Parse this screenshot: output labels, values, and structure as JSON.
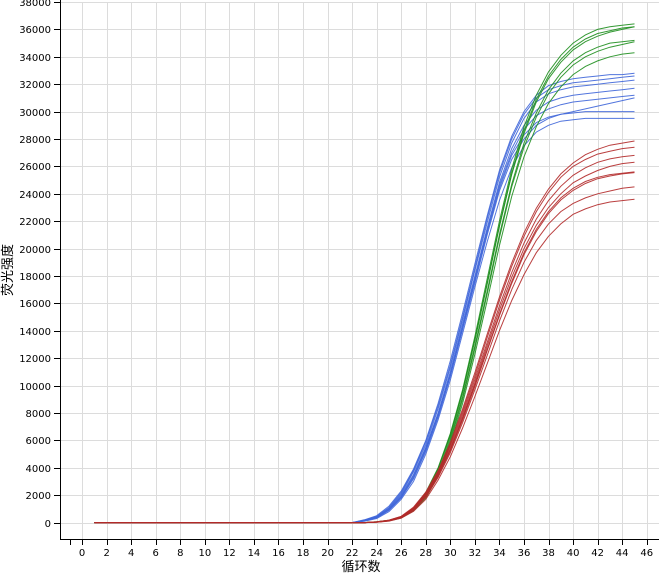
{
  "chart_data": {
    "type": "line",
    "xlabel": "循环数",
    "ylabel": "荧光强度",
    "xlim": [
      -1.8,
      47
    ],
    "ylim": [
      -1200,
      38000
    ],
    "xticks": [
      0,
      2,
      4,
      6,
      8,
      10,
      12,
      14,
      16,
      18,
      20,
      22,
      24,
      26,
      28,
      30,
      32,
      34,
      36,
      38,
      40,
      42,
      44,
      46
    ],
    "yticks": [
      0,
      2000,
      4000,
      6000,
      8000,
      10000,
      12000,
      14000,
      16000,
      18000,
      20000,
      22000,
      24000,
      26000,
      28000,
      30000,
      32000,
      34000,
      36000,
      38000
    ],
    "grid": true,
    "legend": "none",
    "x": [
      1,
      2,
      3,
      4,
      5,
      6,
      7,
      8,
      9,
      10,
      11,
      12,
      13,
      14,
      15,
      16,
      17,
      18,
      19,
      20,
      21,
      22,
      23,
      24,
      25,
      26,
      27,
      28,
      29,
      30,
      31,
      32,
      33,
      34,
      35,
      36,
      37,
      38,
      39,
      40,
      41,
      42,
      43,
      44,
      45
    ],
    "series": [
      {
        "color": "#3f66d9",
        "values": [
          0,
          0,
          0,
          0,
          0,
          0,
          0,
          0,
          0,
          0,
          0,
          0,
          0,
          0,
          0,
          0,
          0,
          0,
          0,
          0,
          0,
          0,
          150,
          400,
          1000,
          2000,
          3500,
          5500,
          8000,
          11000,
          14500,
          18000,
          21500,
          24800,
          27300,
          29000,
          30100,
          30700,
          31000,
          31200,
          31300,
          31400,
          31500,
          31600,
          31700
        ]
      },
      {
        "color": "#3f66d9",
        "values": [
          0,
          0,
          0,
          0,
          0,
          0,
          0,
          0,
          0,
          0,
          0,
          0,
          0,
          0,
          0,
          0,
          0,
          0,
          0,
          0,
          0,
          0,
          120,
          350,
          900,
          1800,
          3200,
          5200,
          7700,
          10700,
          14200,
          17700,
          21200,
          24400,
          26800,
          28300,
          29200,
          29600,
          29800,
          29900,
          30000,
          30000,
          30000,
          30000,
          30000
        ]
      },
      {
        "color": "#3f66d9",
        "values": [
          0,
          0,
          0,
          0,
          0,
          0,
          0,
          0,
          0,
          0,
          0,
          0,
          0,
          0,
          0,
          0,
          0,
          0,
          0,
          0,
          0,
          0,
          180,
          450,
          1100,
          2200,
          3800,
          5900,
          8500,
          11500,
          15000,
          18600,
          22200,
          25500,
          28000,
          29800,
          31000,
          31600,
          31900,
          32100,
          32200,
          32300,
          32400,
          32500,
          32600
        ]
      },
      {
        "color": "#3f66d9",
        "values": [
          0,
          0,
          0,
          0,
          0,
          0,
          0,
          0,
          0,
          0,
          0,
          0,
          0,
          0,
          0,
          0,
          0,
          0,
          0,
          0,
          0,
          0,
          100,
          300,
          800,
          1700,
          3000,
          5000,
          7500,
          10400,
          13800,
          17200,
          20500,
          23500,
          25900,
          27500,
          28500,
          29000,
          29300,
          29400,
          29500,
          29500,
          29500,
          29500,
          29500
        ]
      },
      {
        "color": "#3f66d9",
        "values": [
          0,
          0,
          0,
          0,
          0,
          0,
          0,
          0,
          0,
          0,
          0,
          0,
          0,
          0,
          0,
          0,
          0,
          0,
          0,
          0,
          0,
          0,
          200,
          500,
          1200,
          2300,
          3900,
          6000,
          8700,
          11800,
          15300,
          18900,
          22400,
          25700,
          28200,
          30000,
          31200,
          31900,
          32200,
          32400,
          32500,
          32600,
          32700,
          32700,
          32800
        ]
      },
      {
        "color": "#3f66d9",
        "values": [
          0,
          0,
          0,
          0,
          0,
          0,
          0,
          0,
          0,
          0,
          0,
          0,
          0,
          0,
          0,
          0,
          0,
          0,
          0,
          0,
          0,
          0,
          140,
          380,
          950,
          1900,
          3400,
          5400,
          7900,
          10800,
          14300,
          17800,
          21300,
          24600,
          27000,
          28700,
          29700,
          30200,
          30500,
          30700,
          30800,
          30900,
          31000,
          31100,
          31200
        ]
      },
      {
        "color": "#3f66d9",
        "values": [
          0,
          0,
          0,
          0,
          0,
          0,
          0,
          0,
          0,
          0,
          0,
          0,
          0,
          0,
          0,
          0,
          0,
          0,
          0,
          0,
          0,
          0,
          130,
          360,
          920,
          1850,
          3300,
          5300,
          7800,
          10700,
          14100,
          17500,
          21000,
          24200,
          26500,
          28000,
          29000,
          29500,
          29800,
          30000,
          30200,
          30400,
          30600,
          30800,
          31000
        ]
      },
      {
        "color": "#3f66d9",
        "values": [
          0,
          0,
          0,
          0,
          0,
          0,
          0,
          0,
          0,
          0,
          0,
          0,
          0,
          0,
          0,
          0,
          0,
          0,
          0,
          0,
          0,
          0,
          170,
          430,
          1050,
          2100,
          3700,
          5700,
          8300,
          11300,
          14800,
          18400,
          21900,
          25200,
          27700,
          29500,
          30700,
          31300,
          31600,
          31800,
          31900,
          32000,
          32100,
          32200,
          32300
        ]
      },
      {
        "color": "#1f8f1f",
        "values": [
          0,
          0,
          0,
          0,
          0,
          0,
          0,
          0,
          0,
          0,
          0,
          0,
          0,
          0,
          0,
          0,
          0,
          0,
          0,
          0,
          0,
          0,
          0,
          50,
          150,
          400,
          1000,
          2100,
          3900,
          6300,
          9500,
          13300,
          17400,
          21600,
          25400,
          28400,
          30700,
          32400,
          33600,
          34500,
          35100,
          35500,
          35800,
          36000,
          36200
        ]
      },
      {
        "color": "#1f8f1f",
        "values": [
          0,
          0,
          0,
          0,
          0,
          0,
          0,
          0,
          0,
          0,
          0,
          0,
          0,
          0,
          0,
          0,
          0,
          0,
          0,
          0,
          0,
          0,
          0,
          40,
          130,
          360,
          900,
          1900,
          3600,
          5900,
          9000,
          12700,
          16700,
          20800,
          24500,
          27400,
          29600,
          31300,
          32500,
          33400,
          34000,
          34400,
          34700,
          34900,
          35100
        ]
      },
      {
        "color": "#1f8f1f",
        "values": [
          0,
          0,
          0,
          0,
          0,
          0,
          0,
          0,
          0,
          0,
          0,
          0,
          0,
          0,
          0,
          0,
          0,
          0,
          0,
          0,
          0,
          0,
          0,
          60,
          170,
          430,
          1050,
          2200,
          4000,
          6500,
          9700,
          13600,
          17800,
          22000,
          25800,
          28900,
          31200,
          32900,
          34100,
          35000,
          35600,
          36000,
          36200,
          36300,
          36400
        ]
      },
      {
        "color": "#1f8f1f",
        "values": [
          0,
          0,
          0,
          0,
          0,
          0,
          0,
          0,
          0,
          0,
          0,
          0,
          0,
          0,
          0,
          0,
          0,
          0,
          0,
          0,
          0,
          0,
          0,
          40,
          120,
          330,
          850,
          1800,
          3400,
          5700,
          8700,
          12300,
          16200,
          20200,
          23800,
          26700,
          28900,
          30600,
          31800,
          32700,
          33300,
          33700,
          34000,
          34200,
          34300
        ]
      },
      {
        "color": "#1f8f1f",
        "values": [
          0,
          0,
          0,
          0,
          0,
          0,
          0,
          0,
          0,
          0,
          0,
          0,
          0,
          0,
          0,
          0,
          0,
          0,
          0,
          0,
          0,
          0,
          0,
          55,
          160,
          410,
          1020,
          2150,
          3950,
          6400,
          9600,
          13400,
          17500,
          21700,
          25500,
          28600,
          30900,
          32600,
          33800,
          34700,
          35300,
          35700,
          35900,
          36100,
          36200
        ]
      },
      {
        "color": "#1f8f1f",
        "values": [
          0,
          0,
          0,
          0,
          0,
          0,
          0,
          0,
          0,
          0,
          0,
          0,
          0,
          0,
          0,
          0,
          0,
          0,
          0,
          0,
          0,
          0,
          0,
          45,
          140,
          380,
          950,
          2000,
          3700,
          6100,
          9200,
          12900,
          16900,
          21000,
          24700,
          27700,
          29900,
          31600,
          32800,
          33700,
          34300,
          34700,
          35000,
          35100,
          35200
        ]
      },
      {
        "color": "#b22a2a",
        "values": [
          0,
          0,
          0,
          0,
          0,
          0,
          0,
          0,
          0,
          0,
          0,
          0,
          0,
          0,
          0,
          0,
          0,
          0,
          0,
          0,
          0,
          0,
          0,
          40,
          150,
          400,
          1000,
          2000,
          3500,
          5400,
          7700,
          10200,
          12900,
          15500,
          17900,
          20000,
          21700,
          23000,
          24000,
          24800,
          25300,
          25700,
          26000,
          26200,
          26300
        ]
      },
      {
        "color": "#b22a2a",
        "values": [
          0,
          0,
          0,
          0,
          0,
          0,
          0,
          0,
          0,
          0,
          0,
          0,
          0,
          0,
          0,
          0,
          0,
          0,
          0,
          0,
          0,
          0,
          0,
          30,
          120,
          350,
          900,
          1850,
          3300,
          5100,
          7300,
          9700,
          12200,
          14700,
          17000,
          19000,
          20600,
          21800,
          22700,
          23300,
          23700,
          24000,
          24200,
          24400,
          24500
        ]
      },
      {
        "color": "#b22a2a",
        "values": [
          0,
          0,
          0,
          0,
          0,
          0,
          0,
          0,
          0,
          0,
          0,
          0,
          0,
          0,
          0,
          0,
          0,
          0,
          0,
          0,
          0,
          0,
          0,
          50,
          170,
          440,
          1080,
          2150,
          3700,
          5700,
          8100,
          10700,
          13500,
          16200,
          18700,
          20900,
          22700,
          24100,
          25200,
          26000,
          26500,
          26900,
          27100,
          27300,
          27400
        ]
      },
      {
        "color": "#b22a2a",
        "values": [
          0,
          0,
          0,
          0,
          0,
          0,
          0,
          0,
          0,
          0,
          0,
          0,
          0,
          0,
          0,
          0,
          0,
          0,
          0,
          0,
          0,
          0,
          0,
          30,
          110,
          320,
          820,
          1700,
          3100,
          4800,
          6900,
          9200,
          11600,
          14000,
          16200,
          18100,
          19700,
          20900,
          21800,
          22500,
          22900,
          23200,
          23400,
          23500,
          23600
        ]
      },
      {
        "color": "#b22a2a",
        "values": [
          0,
          0,
          0,
          0,
          0,
          0,
          0,
          0,
          0,
          0,
          0,
          0,
          0,
          0,
          0,
          0,
          0,
          0,
          0,
          0,
          0,
          0,
          0,
          45,
          160,
          420,
          1040,
          2080,
          3600,
          5550,
          7900,
          10450,
          13150,
          15800,
          18250,
          20400,
          22150,
          23500,
          24550,
          25350,
          25900,
          26300,
          26550,
          26700,
          26800
        ]
      },
      {
        "color": "#b22a2a",
        "values": [
          0,
          0,
          0,
          0,
          0,
          0,
          0,
          0,
          0,
          0,
          0,
          0,
          0,
          0,
          0,
          0,
          0,
          0,
          0,
          0,
          0,
          0,
          0,
          35,
          130,
          370,
          940,
          1920,
          3400,
          5250,
          7500,
          9950,
          12550,
          15100,
          17450,
          19550,
          21250,
          22550,
          23550,
          24250,
          24750,
          25100,
          25300,
          25450,
          25550
        ]
      },
      {
        "color": "#b22a2a",
        "values": [
          0,
          0,
          0,
          0,
          0,
          0,
          0,
          0,
          0,
          0,
          0,
          0,
          0,
          0,
          0,
          0,
          0,
          0,
          0,
          0,
          0,
          0,
          0,
          55,
          180,
          460,
          1120,
          2220,
          3800,
          5850,
          8300,
          10950,
          13750,
          16450,
          18950,
          21150,
          22950,
          24350,
          25450,
          26250,
          26850,
          27250,
          27550,
          27700,
          27850
        ]
      },
      {
        "color": "#b22a2a",
        "values": [
          0,
          0,
          0,
          0,
          0,
          0,
          0,
          0,
          0,
          0,
          0,
          0,
          0,
          0,
          0,
          0,
          0,
          0,
          0,
          0,
          0,
          0,
          0,
          40,
          140,
          390,
          970,
          1960,
          3450,
          5300,
          7600,
          10050,
          12650,
          15200,
          17600,
          19700,
          21400,
          22700,
          23700,
          24400,
          24900,
          25200,
          25400,
          25500,
          25600
        ]
      }
    ]
  }
}
